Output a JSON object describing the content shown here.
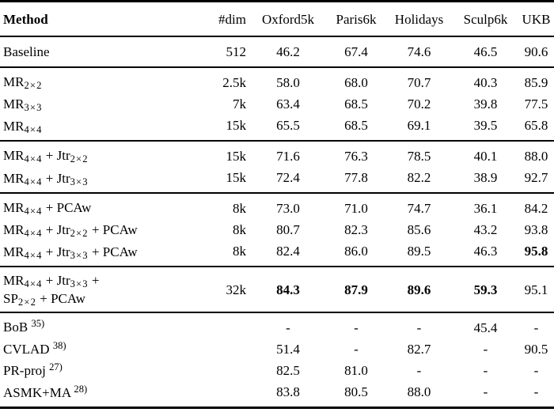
{
  "table": {
    "columns": [
      {
        "key": "method",
        "label": "Method",
        "align": "left"
      },
      {
        "key": "dim",
        "label": "#dim",
        "align": "right"
      },
      {
        "key": "oxford5k",
        "label": "Oxford5k",
        "align": "center"
      },
      {
        "key": "paris6k",
        "label": "Paris6k",
        "align": "center"
      },
      {
        "key": "holidays",
        "label": "Holidays",
        "align": "center"
      },
      {
        "key": "sculp6k",
        "label": "Sculp6k",
        "align": "center"
      },
      {
        "key": "ukb",
        "label": "UKB",
        "align": "center"
      }
    ],
    "sections": [
      {
        "rows": [
          {
            "method": "Baseline",
            "values": [
              "512",
              "46.2",
              "67.4",
              "74.6",
              "46.5",
              "90.6"
            ]
          }
        ]
      },
      {
        "rows": [
          {
            "method": "MR_{2×2}",
            "values": [
              "2.5k",
              "58.0",
              "68.0",
              "70.7",
              "40.3",
              "85.9"
            ]
          },
          {
            "method": "MR_{3×3}",
            "values": [
              "7k",
              "63.4",
              "68.5",
              "70.2",
              "39.8",
              "77.5"
            ]
          },
          {
            "method": "MR_{4×4}",
            "values": [
              "15k",
              "65.5",
              "68.5",
              "69.1",
              "39.5",
              "65.8"
            ]
          }
        ]
      },
      {
        "rows": [
          {
            "method": "MR_{4×4} + Jtr_{2×2}",
            "values": [
              "15k",
              "71.6",
              "76.3",
              "78.5",
              "40.1",
              "88.0"
            ]
          },
          {
            "method": "MR_{4×4} + Jtr_{3×3}",
            "values": [
              "15k",
              "72.4",
              "77.8",
              "82.2",
              "38.9",
              "92.7"
            ]
          }
        ]
      },
      {
        "rows": [
          {
            "method": "MR_{4×4} + PCAw",
            "values": [
              "8k",
              "73.0",
              "71.0",
              "74.7",
              "36.1",
              "84.2"
            ]
          },
          {
            "method": "MR_{4×4} + Jtr_{2×2} + PCAw",
            "values": [
              "8k",
              "80.7",
              "82.3",
              "85.6",
              "43.2",
              "93.8"
            ]
          },
          {
            "method": "MR_{4×4} + Jtr_{3×3} + PCAw",
            "values": [
              "8k",
              "82.4",
              "86.0",
              "89.5",
              "46.3",
              "**95.8**"
            ]
          }
        ]
      },
      {
        "rows": [
          {
            "method": "MR_{4×4} + Jtr_{3×3} +\nSP_{2×2} + PCAw",
            "values": [
              "32k",
              "**84.3**",
              "**87.9**",
              "**89.6**",
              "**59.3**",
              "95.1"
            ]
          }
        ]
      },
      {
        "rows": [
          {
            "method": "BoB ^{35)}",
            "values": [
              "",
              "-",
              "-",
              "-",
              "45.4",
              "-"
            ]
          },
          {
            "method": "CVLAD ^{38)}",
            "values": [
              "",
              "51.4",
              "-",
              "82.7",
              "-",
              "90.5"
            ]
          },
          {
            "method": "PR-proj ^{27)}",
            "values": [
              "",
              "82.5",
              "81.0",
              "-",
              "-",
              "-"
            ]
          },
          {
            "method": "ASMK+MA ^{28)}",
            "values": [
              "",
              "83.8",
              "80.5",
              "88.0",
              "-",
              "-"
            ]
          }
        ]
      }
    ]
  }
}
